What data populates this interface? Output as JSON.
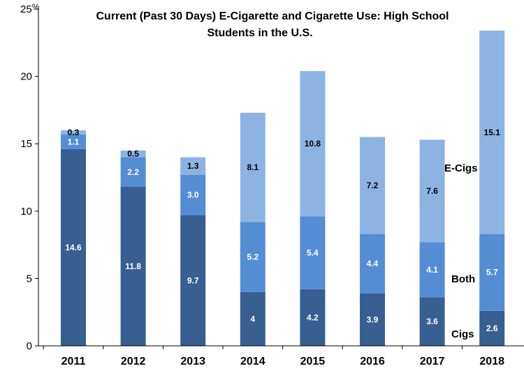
{
  "chart_data": {
    "type": "bar",
    "stacked": true,
    "title_lines": [
      "Current (Past 30 Days) E-Cigarette and Cigarette Use: High School",
      "Students in the U.S."
    ],
    "y_unit": "%",
    "ylim": [
      0,
      25
    ],
    "y_ticks": [
      0,
      5,
      10,
      15,
      20,
      25
    ],
    "grid": false,
    "legend": "inline-right",
    "categories": [
      "2011",
      "2012",
      "2013",
      "2014",
      "2015",
      "2016",
      "2017",
      "2018"
    ],
    "series": [
      {
        "name": "Cigs",
        "color": "#375f91",
        "label_color": "#ffffff",
        "values": [
          14.6,
          11.8,
          9.7,
          4,
          4.2,
          3.9,
          3.6,
          2.6
        ],
        "labels": [
          "14.6",
          "11.8",
          "9.7",
          "4",
          "4.2",
          "3.9",
          "3.6",
          "2.6"
        ]
      },
      {
        "name": "Both",
        "color": "#548dd4",
        "label_color": "#ffffff",
        "values": [
          1.1,
          2.2,
          3.0,
          5.2,
          5.4,
          4.4,
          4.1,
          5.7
        ],
        "labels": [
          "1.1",
          "2.2",
          "3.0",
          "5.2",
          "5.4",
          "4.4",
          "4.1",
          "5.7"
        ]
      },
      {
        "name": "E-Cigs",
        "color": "#8db3e2",
        "label_color": "#000000",
        "values": [
          0.3,
          0.5,
          1.3,
          8.1,
          10.8,
          7.2,
          7.6,
          15.1
        ],
        "labels": [
          "0.3",
          "0.5",
          "1.3",
          "8.1",
          "10.8",
          "7.2",
          "7.6",
          "15.1"
        ]
      }
    ]
  }
}
